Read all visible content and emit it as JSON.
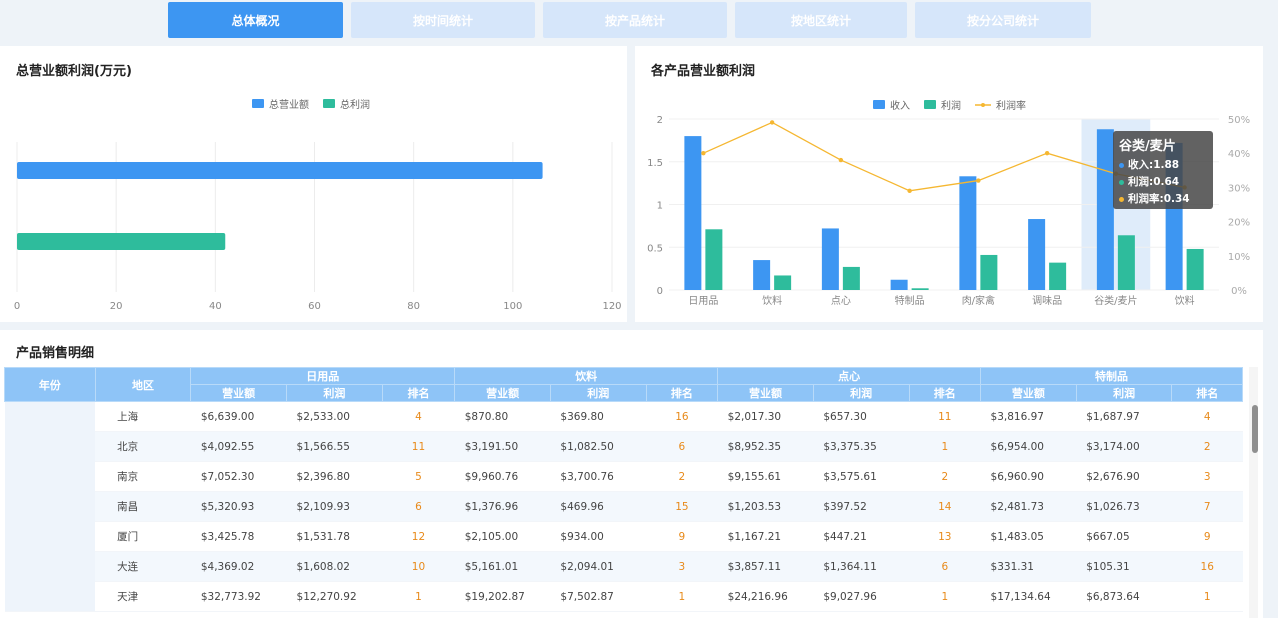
{
  "tabs": [
    "总体概况",
    "按时间统计",
    "按产品统计",
    "按地区统计",
    "按分公司统计"
  ],
  "left_chart": {
    "title": "总营业额利润(万元)",
    "legend": [
      "总营业额",
      "总利润"
    ],
    "colors": [
      "#3d96f2",
      "#2ebc9c"
    ],
    "ticks": [
      "0",
      "20",
      "40",
      "60",
      "80",
      "100",
      "120"
    ]
  },
  "right_chart": {
    "title": "各产品营业额利润",
    "legend": [
      "收入",
      "利润",
      "利润率"
    ],
    "colors": [
      "#3d96f2",
      "#2ebc9c",
      "#f5b731"
    ],
    "y_left_ticks": [
      "0",
      "0.5",
      "1",
      "1.5",
      "2"
    ],
    "y_right_ticks": [
      "0%",
      "10%",
      "20%",
      "30%",
      "40%",
      "50%"
    ],
    "tooltip": {
      "title": "谷类/麦片",
      "lines": [
        "收入:1.88",
        "利润:0.64",
        "利润率:0.34"
      ]
    }
  },
  "chart_data": [
    {
      "type": "bar",
      "orientation": "horizontal",
      "title": "总营业额利润(万元)",
      "series": [
        {
          "name": "总营业额",
          "values": [
            106
          ]
        },
        {
          "name": "总利润",
          "values": [
            42
          ]
        }
      ],
      "xlim": [
        0,
        120
      ],
      "grid": true,
      "legend": "top-center"
    },
    {
      "type": "bar",
      "title": "各产品营业额利润",
      "categories": [
        "日用品",
        "饮料",
        "点心",
        "特制品",
        "肉/家禽",
        "调味品",
        "谷类/麦片",
        "饮料"
      ],
      "series": [
        {
          "name": "收入",
          "type": "bar",
          "axis": "left",
          "values": [
            1.8,
            0.35,
            0.72,
            0.12,
            1.33,
            0.83,
            1.88,
            1.72
          ]
        },
        {
          "name": "利润",
          "type": "bar",
          "axis": "left",
          "values": [
            0.71,
            0.17,
            0.27,
            0.02,
            0.41,
            0.32,
            0.64,
            0.48
          ]
        },
        {
          "name": "利润率",
          "type": "line",
          "axis": "right",
          "values": [
            0.4,
            0.49,
            0.38,
            0.29,
            0.32,
            0.4,
            0.34,
            0.3
          ]
        }
      ],
      "ylim": [
        0,
        2
      ],
      "y2lim": [
        0,
        0.5
      ],
      "grid": true,
      "legend": "top-center"
    }
  ],
  "table": {
    "title": "产品销售明细",
    "col_year": "年份",
    "col_region": "地区",
    "groups": [
      "日用品",
      "饮料",
      "点心",
      "特制品"
    ],
    "sub_headers": [
      "营业额",
      "利润",
      "排名"
    ],
    "rows": [
      {
        "region": "上海",
        "cells": [
          "$6,639.00",
          "$2,533.00",
          "4",
          "$870.80",
          "$369.80",
          "16",
          "$2,017.30",
          "$657.30",
          "11",
          "$3,816.97",
          "$1,687.97",
          "4"
        ]
      },
      {
        "region": "北京",
        "cells": [
          "$4,092.55",
          "$1,566.55",
          "11",
          "$3,191.50",
          "$1,082.50",
          "6",
          "$8,952.35",
          "$3,375.35",
          "1",
          "$6,954.00",
          "$3,174.00",
          "2"
        ]
      },
      {
        "region": "南京",
        "cells": [
          "$7,052.30",
          "$2,396.80",
          "5",
          "$9,960.76",
          "$3,700.76",
          "2",
          "$9,155.61",
          "$3,575.61",
          "2",
          "$6,960.90",
          "$2,676.90",
          "3"
        ]
      },
      {
        "region": "南昌",
        "cells": [
          "$5,320.93",
          "$2,109.93",
          "6",
          "$1,376.96",
          "$469.96",
          "15",
          "$1,203.53",
          "$397.52",
          "14",
          "$2,481.73",
          "$1,026.73",
          "7"
        ]
      },
      {
        "region": "厦门",
        "cells": [
          "$3,425.78",
          "$1,531.78",
          "12",
          "$2,105.00",
          "$934.00",
          "9",
          "$1,167.21",
          "$447.21",
          "13",
          "$1,483.05",
          "$667.05",
          "9"
        ]
      },
      {
        "region": "大连",
        "cells": [
          "$4,369.02",
          "$1,608.02",
          "10",
          "$5,161.01",
          "$2,094.01",
          "3",
          "$3,857.11",
          "$1,364.11",
          "6",
          "$331.31",
          "$105.31",
          "16"
        ]
      },
      {
        "region": "天津",
        "cells": [
          "$32,773.92",
          "$12,270.92",
          "1",
          "$19,202.87",
          "$7,502.87",
          "1",
          "$24,216.96",
          "$9,027.96",
          "1",
          "$17,134.64",
          "$6,873.64",
          "1"
        ]
      }
    ]
  }
}
